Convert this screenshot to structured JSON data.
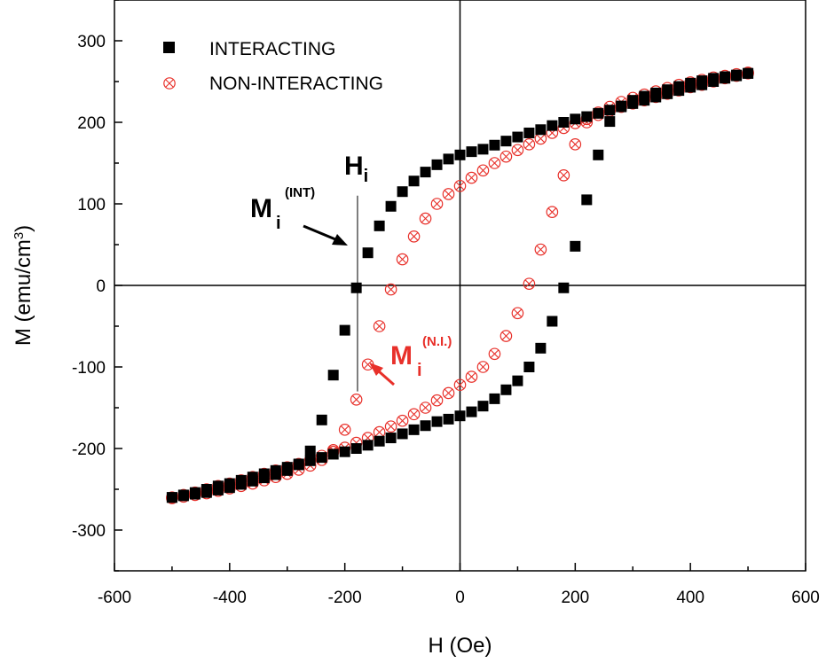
{
  "chart_data": {
    "type": "scatter",
    "xlabel": "H (Oe)",
    "ylabel_main": "M (emu/cm",
    "ylabel_sup": "3",
    "ylabel_close": ")",
    "xlim": [
      -600,
      600
    ],
    "ylim": [
      -350,
      350
    ],
    "xticks": [
      -600,
      -400,
      -200,
      0,
      200,
      400,
      600
    ],
    "yticks": [
      -300,
      -200,
      -100,
      0,
      100,
      200,
      300
    ],
    "xtick_labels": [
      "-600",
      "-400",
      "-200",
      "0",
      "200",
      "400",
      "600"
    ],
    "ytick_labels": [
      "-300",
      "-200",
      "-100",
      "0",
      "100",
      "200",
      "300"
    ],
    "grid": false,
    "zero_lines": true,
    "legend_position": "top-left",
    "legend": [
      {
        "label": "INTERACTING",
        "marker": "filled-square",
        "color": "#000000"
      },
      {
        "label": "NON-INTERACTING",
        "marker": "crossed-circle",
        "color": "#e8302a"
      }
    ],
    "series": [
      {
        "name": "INTERACTING",
        "color": "#000000",
        "marker": "filled-square",
        "descending_branch": {
          "x": [
            500,
            480,
            460,
            440,
            420,
            400,
            380,
            360,
            340,
            320,
            300,
            280,
            260,
            240,
            220,
            200,
            180,
            160,
            140,
            120,
            100,
            80,
            60,
            40,
            20,
            0,
            -20,
            -40,
            -60,
            -80,
            -100,
            -120,
            -140,
            -160,
            -180,
            -200,
            -220,
            -240,
            -260,
            -280,
            -300,
            -320,
            -340,
            -360,
            -380,
            -400,
            -420,
            -440,
            -460,
            -480,
            -500
          ],
          "y": [
            260,
            257,
            254,
            250,
            246,
            243,
            239,
            235,
            231,
            227,
            223,
            219,
            215,
            211,
            207,
            204,
            200,
            196,
            191,
            187,
            182,
            177,
            172,
            167,
            164,
            160,
            155,
            148,
            139,
            128,
            115,
            97,
            73,
            40,
            -3,
            -55,
            -110,
            -165,
            -203,
            -220,
            -227,
            -232,
            -236,
            -240,
            -244,
            -248,
            -251,
            -254,
            -256,
            -258,
            -260
          ]
        },
        "ascending_branch": {
          "x": [
            -500,
            -480,
            -460,
            -440,
            -420,
            -400,
            -380,
            -360,
            -340,
            -320,
            -300,
            -280,
            -260,
            -240,
            -220,
            -200,
            -180,
            -160,
            -140,
            -120,
            -100,
            -80,
            -60,
            -40,
            -20,
            0,
            20,
            40,
            60,
            80,
            100,
            120,
            140,
            160,
            180,
            200,
            220,
            240,
            260,
            280,
            300,
            320,
            340,
            360,
            380,
            400,
            420,
            440,
            460,
            480,
            500
          ],
          "y": [
            -260,
            -257,
            -254,
            -250,
            -246,
            -243,
            -239,
            -235,
            -231,
            -227,
            -223,
            -219,
            -215,
            -211,
            -207,
            -204,
            -200,
            -196,
            -191,
            -187,
            -182,
            -177,
            -172,
            -167,
            -164,
            -160,
            -155,
            -148,
            -139,
            -128,
            -117,
            -100,
            -77,
            -44,
            -3,
            48,
            105,
            160,
            201,
            220,
            227,
            232,
            236,
            240,
            244,
            248,
            251,
            254,
            256,
            258,
            260
          ]
        }
      },
      {
        "name": "NON-INTERACTING",
        "color": "#e8302a",
        "marker": "crossed-circle",
        "descending_branch": {
          "x": [
            500,
            480,
            460,
            440,
            420,
            400,
            380,
            360,
            340,
            320,
            300,
            280,
            260,
            240,
            220,
            200,
            180,
            160,
            140,
            120,
            100,
            80,
            60,
            40,
            20,
            0,
            -20,
            -40,
            -60,
            -80,
            -100,
            -120,
            -140,
            -160,
            -180,
            -200,
            -220,
            -240,
            -260,
            -280,
            -300,
            -320,
            -340,
            -360,
            -380,
            -400,
            -420,
            -440,
            -460,
            -480,
            -500
          ],
          "y": [
            260,
            257,
            254,
            250,
            246,
            243,
            239,
            235,
            231,
            227,
            223,
            219,
            214,
            209,
            204,
            199,
            193,
            187,
            180,
            173,
            166,
            158,
            150,
            141,
            132,
            122,
            112,
            100,
            82,
            60,
            32,
            -5,
            -50,
            -97,
            -140,
            -177,
            -202,
            -214,
            -221,
            -226,
            -231,
            -235,
            -239,
            -243,
            -246,
            -249,
            -252,
            -255,
            -257,
            -259,
            -261
          ]
        },
        "ascending_branch": {
          "x": [
            -500,
            -480,
            -460,
            -440,
            -420,
            -400,
            -380,
            -360,
            -340,
            -320,
            -300,
            -280,
            -260,
            -240,
            -220,
            -200,
            -180,
            -160,
            -140,
            -120,
            -100,
            -80,
            -60,
            -40,
            -20,
            0,
            20,
            40,
            60,
            80,
            100,
            120,
            140,
            160,
            180,
            200,
            220,
            240,
            260,
            280,
            300,
            320,
            340,
            360,
            380,
            400,
            420,
            440,
            460,
            480,
            500
          ],
          "y": [
            -260,
            -257,
            -254,
            -250,
            -246,
            -243,
            -239,
            -235,
            -231,
            -227,
            -223,
            -219,
            -214,
            -209,
            -204,
            -199,
            -193,
            -187,
            -180,
            -173,
            -166,
            -158,
            -150,
            -141,
            -132,
            -122,
            -112,
            -100,
            -84,
            -62,
            -34,
            2,
            44,
            90,
            135,
            173,
            200,
            212,
            219,
            225,
            230,
            234,
            238,
            242,
            246,
            249,
            252,
            255,
            257,
            259,
            261
          ]
        }
      }
    ],
    "annotations": {
      "hi": {
        "main": "H",
        "sub": "i",
        "x": -178,
        "y_top": 110,
        "y_bottom": -130
      },
      "mi_int": {
        "main": "M",
        "sub": "i",
        "sup": "(INT)",
        "color": "#000000"
      },
      "mi_ni": {
        "main": "M",
        "sub": "i",
        "sup": "(N.I.)",
        "color": "#e8302a"
      }
    }
  }
}
